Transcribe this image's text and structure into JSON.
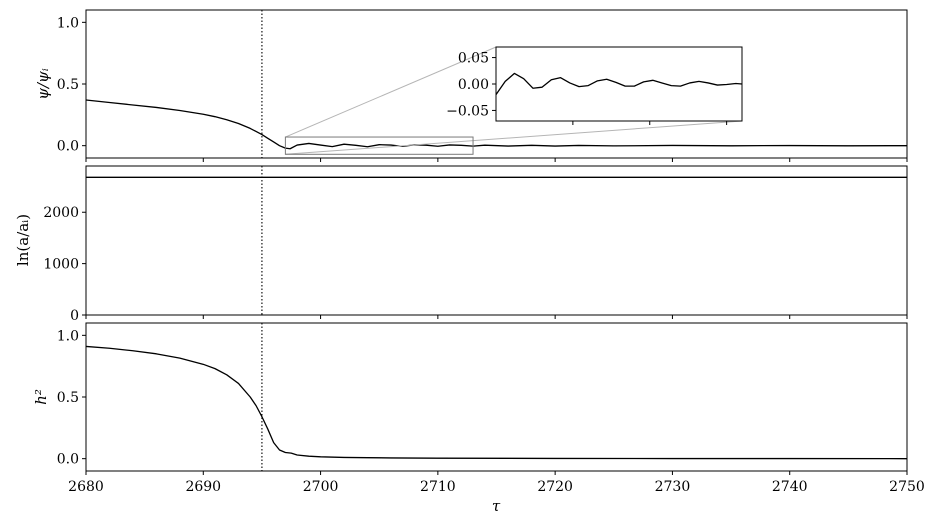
{
  "figure": {
    "xlabel": "τ"
  },
  "chart_data": [
    {
      "type": "line",
      "panel": "top",
      "ylabel": "ψ/ψᵢ",
      "xlim": [
        2680,
        2750
      ],
      "ylim": [
        -0.1,
        1.1
      ],
      "yticks": [
        0.0,
        0.5,
        1.0
      ],
      "ytick_labels": [
        "0.0",
        "0.5",
        "1.0"
      ],
      "vline_x": 2695,
      "series": [
        {
          "x": [
            2680,
            2682,
            2684,
            2686,
            2688,
            2690,
            2691,
            2692,
            2693,
            2694,
            2694.5,
            2695,
            2695.5,
            2696,
            2696.5,
            2697,
            2697.4,
            2698,
            2699,
            2700,
            2701,
            2702,
            2703,
            2704,
            2705,
            2706,
            2707,
            2708,
            2709,
            2710,
            2711,
            2712,
            2713,
            2714,
            2716,
            2718,
            2720,
            2722,
            2725,
            2730,
            2735,
            2740,
            2745,
            2750
          ],
          "values": [
            0.37,
            0.35,
            0.33,
            0.31,
            0.285,
            0.255,
            0.235,
            0.21,
            0.18,
            0.14,
            0.115,
            0.09,
            0.06,
            0.03,
            0.0,
            -0.02,
            -0.025,
            0.005,
            0.018,
            0.005,
            -0.008,
            0.012,
            0.003,
            -0.009,
            0.008,
            0.005,
            -0.006,
            0.007,
            0.004,
            -0.005,
            0.006,
            0.003,
            -0.004,
            0.004,
            -0.003,
            0.003,
            -0.003,
            0.002,
            -0.002,
            0.002,
            -0.001,
            0.001,
            -0.001,
            0.0
          ]
        }
      ],
      "zoom_box": {
        "xlim": [
          2697,
          2713
        ],
        "ylim": [
          -0.07,
          0.07
        ]
      }
    },
    {
      "type": "line",
      "panel": "inset",
      "xlim": [
        2697,
        2713
      ],
      "ylim": [
        -0.07,
        0.07
      ],
      "yticks": [
        0.05,
        0.0,
        -0.05
      ],
      "ytick_labels": [
        "0.05",
        "0.00",
        "−0.05"
      ],
      "series": [
        {
          "x": [
            2697,
            2697.6,
            2698.2,
            2698.8,
            2699.4,
            2700.0,
            2700.6,
            2701.2,
            2701.8,
            2702.4,
            2703.0,
            2703.6,
            2704.2,
            2704.8,
            2705.4,
            2706.0,
            2706.6,
            2707.2,
            2707.8,
            2708.4,
            2709.0,
            2709.6,
            2710.2,
            2710.8,
            2711.4,
            2712.0,
            2712.6,
            2713
          ],
          "values": [
            -0.02,
            0.005,
            0.02,
            0.01,
            -0.008,
            -0.006,
            0.008,
            0.012,
            0.002,
            -0.005,
            -0.003,
            0.006,
            0.009,
            0.003,
            -0.004,
            -0.004,
            0.004,
            0.007,
            0.002,
            -0.003,
            -0.004,
            0.002,
            0.005,
            0.002,
            -0.002,
            -0.001,
            0.001,
            0.0
          ]
        }
      ]
    },
    {
      "type": "line",
      "panel": "middle",
      "ylabel": "ln(a/aᵢ)",
      "xlim": [
        2680,
        2750
      ],
      "ylim": [
        0,
        2900
      ],
      "yticks": [
        0,
        1000,
        2000
      ],
      "ytick_labels": [
        "0",
        "1000",
        "2000"
      ],
      "vline_x": 2695,
      "series": [
        {
          "x": [
            2680,
            2750
          ],
          "values": [
            2680,
            2680
          ]
        }
      ]
    },
    {
      "type": "line",
      "panel": "bottom",
      "ylabel": "h²",
      "xlabel": "τ",
      "xlim": [
        2680,
        2750
      ],
      "ylim": [
        -0.1,
        1.1
      ],
      "xticks": [
        2680,
        2690,
        2700,
        2710,
        2720,
        2730,
        2740,
        2750
      ],
      "xtick_labels": [
        "2680",
        "2690",
        "2700",
        "2710",
        "2720",
        "2730",
        "2740",
        "2750"
      ],
      "yticks": [
        0.0,
        0.5,
        1.0
      ],
      "ytick_labels": [
        "0.0",
        "0.5",
        "1.0"
      ],
      "vline_x": 2695,
      "series": [
        {
          "x": [
            2680,
            2682,
            2684,
            2686,
            2688,
            2690,
            2691,
            2692,
            2693,
            2694,
            2694.5,
            2695,
            2695.5,
            2696,
            2696.5,
            2697,
            2697.5,
            2698,
            2699,
            2700,
            2702,
            2704,
            2706,
            2710,
            2720,
            2730,
            2740,
            2750
          ],
          "values": [
            0.91,
            0.895,
            0.875,
            0.85,
            0.815,
            0.765,
            0.73,
            0.68,
            0.61,
            0.5,
            0.43,
            0.34,
            0.24,
            0.13,
            0.07,
            0.05,
            0.045,
            0.03,
            0.02,
            0.015,
            0.01,
            0.008,
            0.006,
            0.004,
            0.002,
            0.001,
            0.001,
            0.0
          ]
        }
      ]
    }
  ]
}
